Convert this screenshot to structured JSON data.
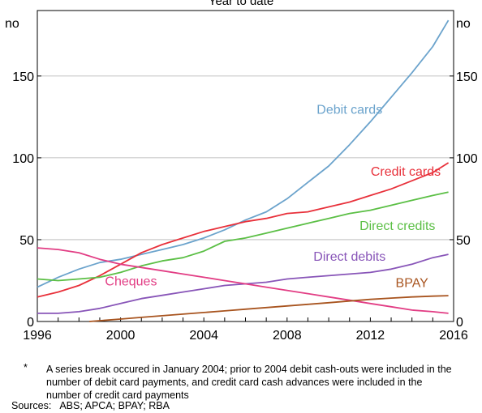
{
  "chart_data": {
    "type": "line",
    "title": "Year to date",
    "ylabel_left": "no",
    "ylabel_right": "no",
    "xlim": [
      1996,
      2016
    ],
    "ylim": [
      0,
      190
    ],
    "x_ticks": [
      1996,
      2000,
      2004,
      2008,
      2012,
      2016
    ],
    "y_ticks": [
      0,
      50,
      100,
      150
    ],
    "grid": true,
    "series": [
      {
        "name": "Debit cards",
        "color": "#6ba3cc",
        "x": [
          1996,
          1997,
          1998,
          1999,
          2000,
          2001,
          2002,
          2003,
          2004,
          2005,
          2006,
          2007,
          2008,
          2009,
          2010,
          2011,
          2012,
          2013,
          2014,
          2015,
          2015.75
        ],
        "y": [
          21,
          27,
          32,
          36,
          38,
          41,
          44,
          47,
          51,
          56,
          62,
          67,
          75,
          85,
          95,
          108,
          122,
          137,
          152,
          168,
          184
        ]
      },
      {
        "name": "Credit cards",
        "color": "#e8303a",
        "x": [
          1996,
          1997,
          1998,
          1999,
          2000,
          2001,
          2002,
          2003,
          2004,
          2005,
          2006,
          2007,
          2008,
          2009,
          2010,
          2011,
          2012,
          2013,
          2014,
          2015,
          2015.75
        ],
        "y": [
          15,
          18,
          22,
          28,
          35,
          42,
          47,
          51,
          55,
          58,
          61,
          63,
          66,
          67,
          70,
          73,
          77,
          81,
          86,
          91,
          97
        ]
      },
      {
        "name": "Direct credits",
        "color": "#5bbf45",
        "x": [
          1996,
          1997,
          1998,
          1999,
          2000,
          2001,
          2002,
          2003,
          2004,
          2005,
          2006,
          2007,
          2008,
          2009,
          2010,
          2011,
          2012,
          2013,
          2014,
          2015,
          2015.75
        ],
        "y": [
          26,
          25,
          26,
          27,
          30,
          34,
          37,
          39,
          43,
          49,
          51,
          54,
          57,
          60,
          63,
          66,
          68,
          71,
          74,
          77,
          79
        ]
      },
      {
        "name": "Direct debits",
        "color": "#8855b8",
        "x": [
          1996,
          1997,
          1998,
          1999,
          2000,
          2001,
          2002,
          2003,
          2004,
          2005,
          2006,
          2007,
          2008,
          2009,
          2010,
          2011,
          2012,
          2013,
          2014,
          2015,
          2015.75
        ],
        "y": [
          5,
          5,
          6,
          8,
          11,
          14,
          16,
          18,
          20,
          22,
          23,
          24,
          26,
          27,
          28,
          29,
          30,
          32,
          35,
          39,
          41
        ]
      },
      {
        "name": "Cheques",
        "color": "#e23d84",
        "x": [
          1996,
          1997,
          1998,
          1999,
          2000,
          2001,
          2002,
          2003,
          2004,
          2005,
          2006,
          2007,
          2008,
          2009,
          2010,
          2011,
          2012,
          2013,
          2014,
          2015,
          2015.75
        ],
        "y": [
          45,
          44,
          42,
          38,
          35,
          33,
          31,
          29,
          27,
          25,
          23,
          21,
          19,
          17,
          15,
          13,
          11,
          9,
          7,
          6,
          5
        ]
      },
      {
        "name": "BPAY",
        "color": "#a8541f",
        "x": [
          1998.5,
          1999,
          2000,
          2001,
          2002,
          2003,
          2004,
          2005,
          2006,
          2007,
          2008,
          2009,
          2010,
          2011,
          2012,
          2013,
          2014,
          2015,
          2015.75
        ],
        "y": [
          0,
          0.5,
          1.5,
          2.5,
          3.5,
          4.5,
          5.5,
          6.5,
          7.5,
          8.5,
          9.5,
          10.5,
          11.5,
          12.5,
          13.5,
          14.3,
          15,
          15.5,
          15.8
        ]
      }
    ]
  },
  "footnote": {
    "marker": "*",
    "text": "A series break occured in January 2004; prior to 2004 debit cash-outs were included in the number of debit card payments, and credit card cash advances were included in the number of credit card payments"
  },
  "sources": {
    "label": "Sources:",
    "text": "ABS; APCA; BPAY; RBA"
  }
}
